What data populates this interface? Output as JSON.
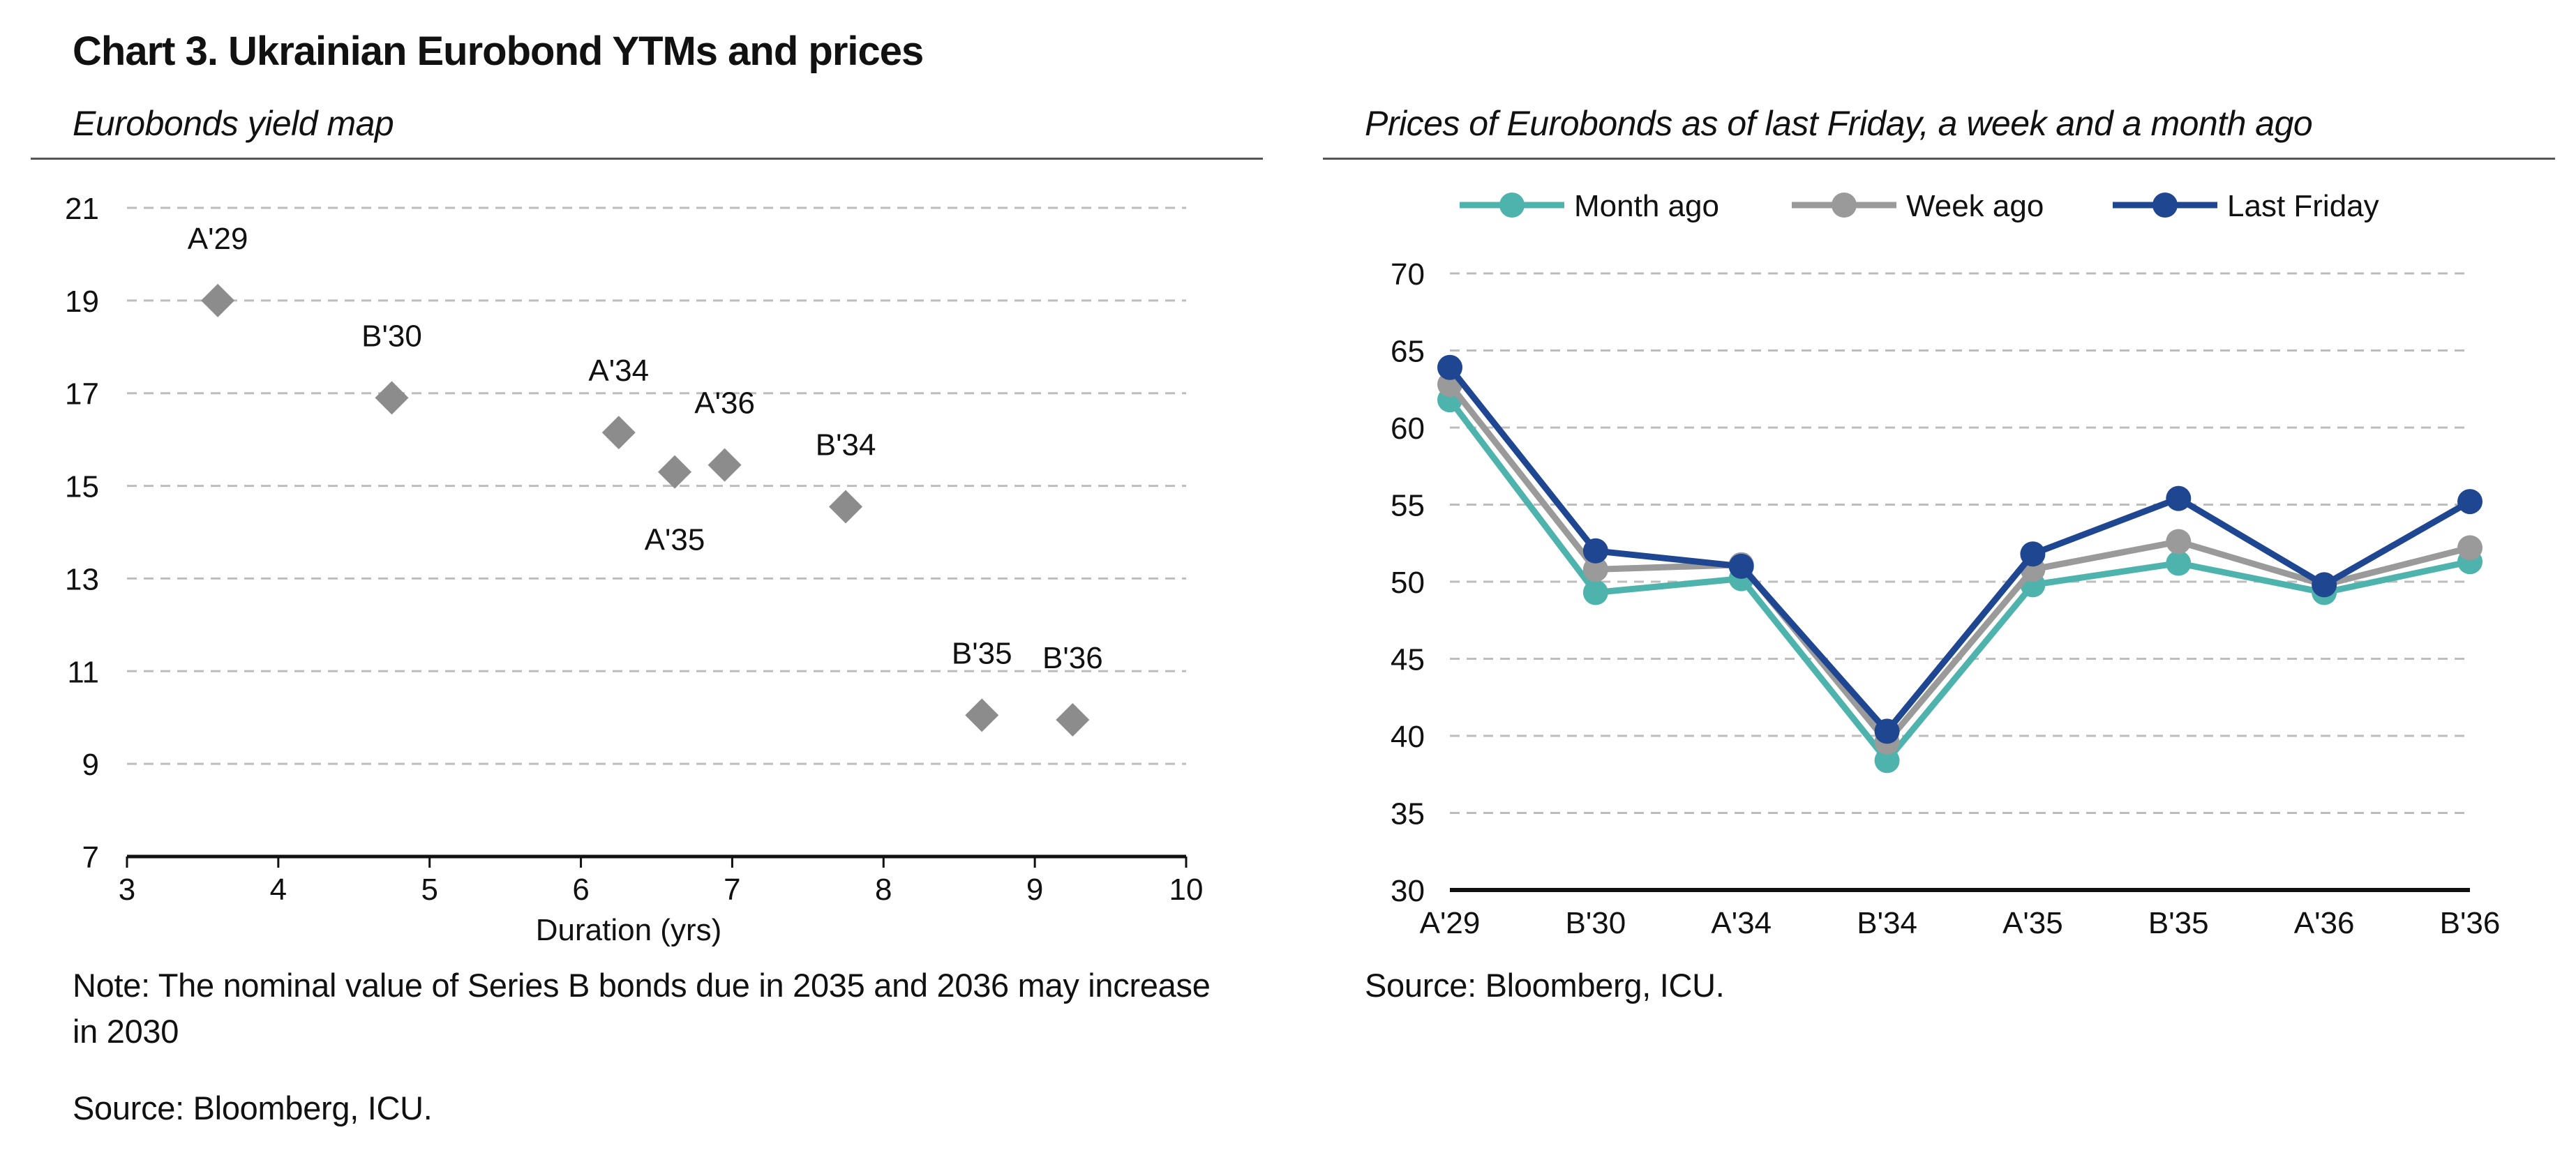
{
  "title": "Chart 3. Ukrainian Eurobond YTMs and prices",
  "left_panel": {
    "subtitle": "Eurobonds yield map",
    "note": "Note: The nominal value of Series B bonds due in 2035 and 2036 may increase in 2030",
    "source": "Source: Bloomberg, ICU."
  },
  "right_panel": {
    "subtitle": "Prices of Eurobonds as of last Friday, a week and a month ago",
    "source": "Source: Bloomberg, ICU."
  },
  "chart_data": [
    {
      "type": "scatter",
      "title": "Eurobonds yield map",
      "xlabel": "Duration (yrs)",
      "ylabel": "",
      "xlim": [
        3,
        10
      ],
      "ylim": [
        7,
        21
      ],
      "xticks": [
        3,
        4,
        5,
        6,
        7,
        8,
        9,
        10
      ],
      "yticks": [
        7,
        9,
        11,
        13,
        15,
        17,
        19,
        21
      ],
      "grid": true,
      "marker": "diamond",
      "color": "#8c8c8c",
      "points": [
        {
          "label": "A'29",
          "x": 3.6,
          "y": 19.0
        },
        {
          "label": "B'30",
          "x": 4.75,
          "y": 16.9
        },
        {
          "label": "A'34",
          "x": 6.25,
          "y": 16.15
        },
        {
          "label": "A'35",
          "x": 6.62,
          "y": 15.3
        },
        {
          "label": "A'36",
          "x": 6.95,
          "y": 15.45
        },
        {
          "label": "B'34",
          "x": 7.75,
          "y": 14.55
        },
        {
          "label": "B'35",
          "x": 8.65,
          "y": 10.05
        },
        {
          "label": "B'36",
          "x": 9.25,
          "y": 9.95
        }
      ]
    },
    {
      "type": "line",
      "title": "Prices of Eurobonds as of last Friday, a week and a month ago",
      "xlabel": "",
      "ylabel": "",
      "categories": [
        "A'29",
        "B'30",
        "A'34",
        "B'34",
        "A'35",
        "B'35",
        "A'36",
        "B'36"
      ],
      "ylim": [
        30,
        70
      ],
      "yticks": [
        30,
        35,
        40,
        45,
        50,
        55,
        60,
        65,
        70
      ],
      "grid": true,
      "legend": "top",
      "series": [
        {
          "name": "Month ago",
          "color": "#4fb3ad",
          "values": [
            61.8,
            49.3,
            50.2,
            38.4,
            49.8,
            51.2,
            49.3,
            51.3
          ]
        },
        {
          "name": "Week ago",
          "color": "#9a9a9a",
          "values": [
            62.8,
            50.8,
            51.1,
            39.6,
            50.8,
            52.6,
            49.8,
            52.2
          ]
        },
        {
          "name": "Last Friday",
          "color": "#1f4690",
          "values": [
            63.9,
            52.0,
            51.0,
            40.3,
            51.8,
            55.4,
            49.8,
            55.2
          ]
        }
      ]
    }
  ]
}
